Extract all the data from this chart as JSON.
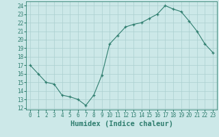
{
  "x": [
    0,
    1,
    2,
    3,
    4,
    5,
    6,
    7,
    8,
    9,
    10,
    11,
    12,
    13,
    14,
    15,
    16,
    17,
    18,
    19,
    20,
    21,
    22,
    23
  ],
  "y": [
    17,
    16,
    15,
    14.8,
    13.5,
    13.3,
    13,
    12.3,
    13.5,
    15.8,
    19.5,
    20.5,
    21.5,
    21.8,
    22,
    22.5,
    23,
    24,
    23.6,
    23.3,
    22.2,
    21,
    19.5,
    18.5
  ],
  "line_color": "#2e7d6e",
  "marker": "+",
  "bg_color": "#cce8e8",
  "grid_color": "#aacfcf",
  "xlabel": "Humidex (Indice chaleur)",
  "ylabel_ticks": [
    12,
    13,
    14,
    15,
    16,
    17,
    18,
    19,
    20,
    21,
    22,
    23,
    24
  ],
  "xlim": [
    -0.5,
    23.5
  ],
  "ylim": [
    11.8,
    24.5
  ],
  "tick_color": "#2e7d6e",
  "tick_fontsize": 5.5,
  "xlabel_fontsize": 7.5
}
